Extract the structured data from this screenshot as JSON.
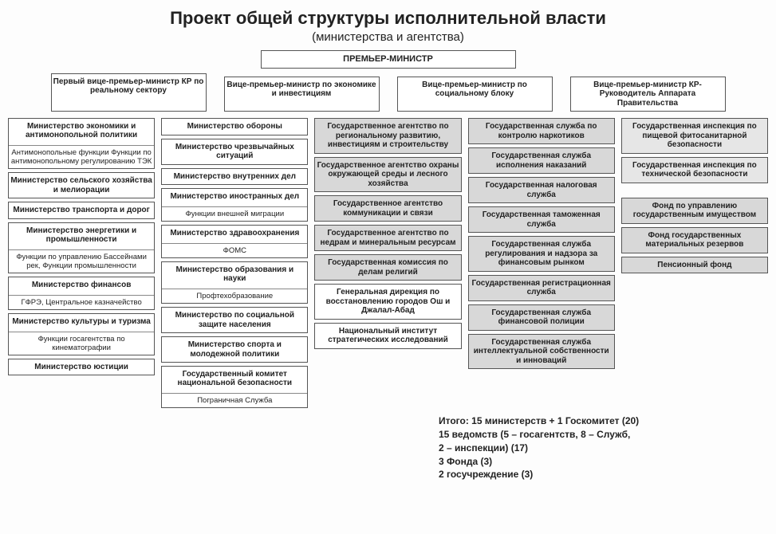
{
  "title": "Проект общей структуры исполнительной власти",
  "subtitle": "(министерства и агентства)",
  "pm": "ПРЕМЬЕР-МИНИСТР",
  "vices": [
    "Первый вице-премьер-министр КР по реальному сектору",
    "Вице-премьер-министр по экономике и инвестициям",
    "Вице-премьер-министр по социальному блоку",
    "Вице-премьер-министр КР- Руководитель Аппарата Правительства"
  ],
  "col1": [
    {
      "head": "Министерство экономики и антимонопольной политики",
      "sub": "Антимонопольные функции Функции по антимонопольному регулированию ТЭК"
    },
    {
      "head": "Министерство сельского хозяйства и мелиорации"
    },
    {
      "head": "Министерство транспорта и дорог"
    },
    {
      "head": "Министерство энергетики и промышленности",
      "sub": "Функции по управлению Бассейнами рек, Функции промышленности"
    },
    {
      "head": "Министерство финансов",
      "sub": "ГФРЭ, Центральное казначейство"
    },
    {
      "head": "Министерство культуры и туризма",
      "sub": "Функции госагентства по кинематографии"
    },
    {
      "head": "Министерство юстиции"
    }
  ],
  "col2": [
    {
      "head": "Министерство обороны"
    },
    {
      "head": "Министерство чрезвычайных ситуаций"
    },
    {
      "head": "Министерство внутренних дел"
    },
    {
      "head": "Министерство иностранных дел",
      "sub": "Функции внешней миграции"
    },
    {
      "head": "Министерство здравоохранения",
      "sub": "ФОМС"
    },
    {
      "head": "Министерство образования и науки",
      "sub": "Профтехобразование"
    },
    {
      "head": "Министерство по социальной защите населения"
    },
    {
      "head": "Министерство спорта и молодежной политики"
    },
    {
      "head": "Государственный комитет национальной безопасности",
      "sub": "Пограничная Служба"
    }
  ],
  "col3_grey": [
    "Государственное агентство по региональному развитию, инвестициям и строительству",
    "Государственное агентство охраны окружающей среды и лесного хозяйства",
    "Государственное агентство коммуникации и связи",
    "Государственное агентство по недрам и минеральным ресурсам",
    "Государственная комиссия по делам религий"
  ],
  "col3_white": [
    "Генеральная дирекция по восстановлению городов Ош и Джалал-Абад",
    "Национальный институт стратегических исследований"
  ],
  "col4": [
    "Государственная служба по контролю наркотиков",
    "Государственная служба исполнения наказаний",
    "Государственная налоговая служба",
    "Государственная таможенная служба",
    "Государственная служба регулирования и надзора за финансовым рынком",
    "Государственная регистрационная служба",
    "Государственная служба финансовой полиции",
    "Государственная служба интеллектуальной собственности и инноваций"
  ],
  "col5_top": [
    "Государственная инспекция по пищевой фитосанитарной безопасности",
    "Государственная инспекция по технической безопасности"
  ],
  "col5_bottom": [
    "Фонд по управлению государственным имуществом",
    "Фонд государственных материальных резервов",
    "Пенсионный фонд"
  ],
  "totals": [
    "Итого: 15 министерств + 1 Госкомитет (20)",
    "15 ведомств (5 – госагентств, 8 – Служб,",
    "2 – инспекции) (17)",
    "3 Фонда (3)",
    "2 госучреждение  (3)"
  ],
  "colors": {
    "bg": "#fdfdfd",
    "border": "#555555",
    "shade": "#d8d8d8",
    "shade2": "#e6e6e6",
    "text": "#222222"
  }
}
